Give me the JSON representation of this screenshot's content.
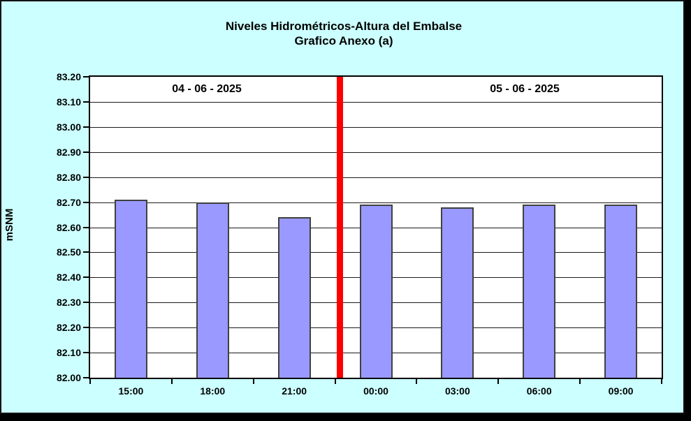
{
  "frame": {
    "background": "#CCFFFF",
    "border_color": "#000000",
    "shadow_color": "#000000"
  },
  "chart_data": {
    "type": "bar",
    "title": "Niveles Hidrométricos-Altura del Embalse",
    "subtitle": "Grafico Anexo (a)",
    "ylabel": "mSNM",
    "xlabel": "",
    "categories": [
      "15:00",
      "18:00",
      "21:00",
      "00:00",
      "03:00",
      "06:00",
      "09:00"
    ],
    "values": [
      82.71,
      82.7,
      82.64,
      82.69,
      82.68,
      82.69,
      82.69
    ],
    "ylim": [
      82.0,
      83.2
    ],
    "ytick_step": 0.1,
    "ytick_labels": [
      "82.00",
      "82.10",
      "82.20",
      "82.30",
      "82.40",
      "82.50",
      "82.60",
      "82.70",
      "82.80",
      "82.90",
      "83.00",
      "83.10",
      "83.20"
    ],
    "grid": true,
    "legend_position": "none",
    "plot_background": "#FFFFFF",
    "gridline_color": "#1A1A1A",
    "bar_color": "#9999FF",
    "bar_border_color": "#404040",
    "day_separator": {
      "color": "#FF0000",
      "after_category_index": 2
    },
    "date_groups": [
      {
        "label": "04 - 06 - 2025",
        "category_indices": [
          0,
          1,
          2
        ]
      },
      {
        "label": "05 - 06 - 2025",
        "category_indices": [
          3,
          4,
          5,
          6
        ]
      }
    ]
  }
}
